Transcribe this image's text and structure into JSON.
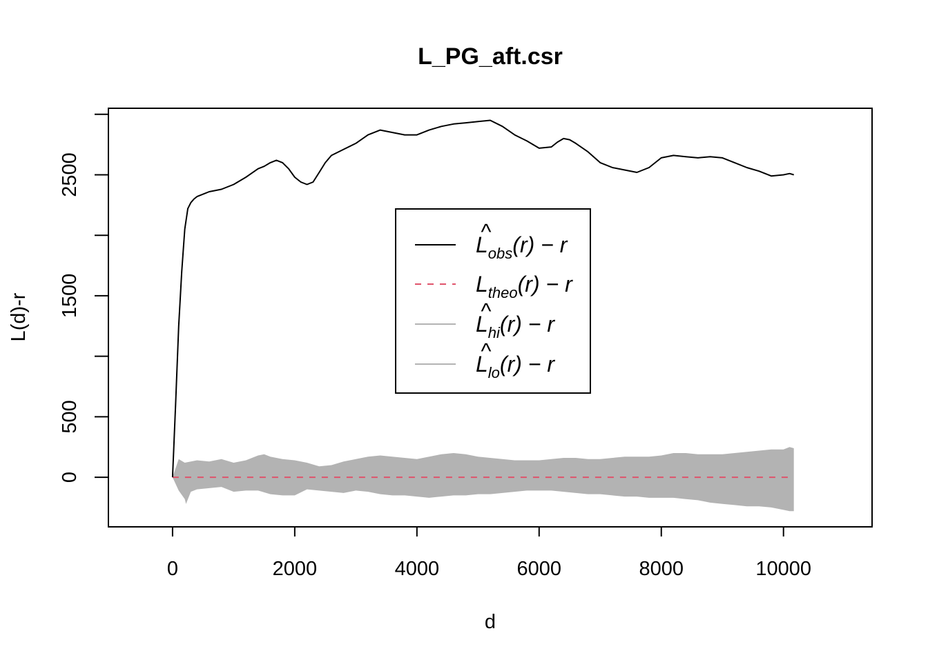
{
  "chart_data": {
    "type": "line",
    "title": "L_PG_aft.csr",
    "xlabel": "d",
    "ylabel": "L(d)-r",
    "xlim": [
      -1050,
      11450
    ],
    "ylim": [
      -410,
      3050
    ],
    "xticks": [
      0,
      2000,
      4000,
      6000,
      8000,
      10000
    ],
    "xtick_labels": [
      "0",
      "2000",
      "4000",
      "6000",
      "8000",
      "10000"
    ],
    "yticks": [
      0,
      500,
      1000,
      1500,
      2000,
      2500,
      3000
    ],
    "ytick_labels": [
      "0",
      "500",
      "",
      "1500",
      "",
      "2500",
      ""
    ],
    "grid": false,
    "legend_position": "center",
    "colors": {
      "obs": "#000000",
      "theo": "#DF536B",
      "envelope": "#B3B3B3"
    },
    "legend": [
      {
        "key": "obs",
        "base": "L",
        "hat": true,
        "sub": "obs",
        "tail": "(r) − r",
        "style": "solid"
      },
      {
        "key": "theo",
        "base": "L",
        "hat": false,
        "sub": "theo",
        "tail": "(r) − r",
        "style": "dashed"
      },
      {
        "key": "hi",
        "base": "L",
        "hat": true,
        "sub": "hi",
        "tail": "(r) − r",
        "style": "solid"
      },
      {
        "key": "lo",
        "base": "L",
        "hat": true,
        "sub": "lo",
        "tail": "(r) − r",
        "style": "solid"
      }
    ],
    "series": [
      {
        "key": "obs",
        "x": [
          0,
          50,
          100,
          150,
          200,
          250,
          300,
          350,
          400,
          500,
          600,
          800,
          1000,
          1200,
          1400,
          1500,
          1600,
          1700,
          1800,
          1900,
          2000,
          2100,
          2200,
          2300,
          2400,
          2500,
          2600,
          2800,
          3000,
          3200,
          3400,
          3600,
          3800,
          4000,
          4200,
          4400,
          4600,
          4800,
          5000,
          5200,
          5400,
          5600,
          5800,
          6000,
          6200,
          6300,
          6400,
          6500,
          6600,
          6800,
          7000,
          7200,
          7400,
          7600,
          7800,
          8000,
          8200,
          8400,
          8600,
          8800,
          9000,
          9200,
          9400,
          9600,
          9800,
          10000,
          10100,
          10170
        ],
        "y": [
          0,
          600,
          1250,
          1700,
          2050,
          2220,
          2270,
          2300,
          2320,
          2340,
          2360,
          2380,
          2420,
          2480,
          2550,
          2570,
          2600,
          2620,
          2600,
          2550,
          2480,
          2440,
          2420,
          2440,
          2520,
          2600,
          2660,
          2710,
          2760,
          2830,
          2870,
          2850,
          2830,
          2830,
          2870,
          2900,
          2920,
          2930,
          2940,
          2950,
          2900,
          2830,
          2780,
          2720,
          2730,
          2770,
          2800,
          2790,
          2760,
          2690,
          2600,
          2560,
          2540,
          2520,
          2560,
          2640,
          2660,
          2650,
          2640,
          2650,
          2640,
          2600,
          2560,
          2530,
          2490,
          2500,
          2510,
          2500
        ]
      },
      {
        "key": "theo",
        "x": [
          0,
          10170
        ],
        "y": [
          0,
          0
        ]
      },
      {
        "key": "hi",
        "x": [
          0,
          100,
          200,
          400,
          600,
          800,
          1000,
          1200,
          1400,
          1500,
          1600,
          1800,
          2000,
          2200,
          2400,
          2600,
          2800,
          3000,
          3200,
          3400,
          3600,
          3800,
          4000,
          4200,
          4400,
          4600,
          4800,
          5000,
          5200,
          5400,
          5600,
          5800,
          6000,
          6200,
          6400,
          6600,
          6800,
          7000,
          7200,
          7400,
          7600,
          7800,
          8000,
          8200,
          8400,
          8600,
          8800,
          9000,
          9200,
          9400,
          9600,
          9800,
          10000,
          10100,
          10170
        ],
        "y": [
          0,
          150,
          120,
          140,
          130,
          150,
          120,
          140,
          180,
          190,
          170,
          150,
          140,
          120,
          90,
          100,
          130,
          150,
          170,
          180,
          170,
          160,
          150,
          170,
          190,
          200,
          190,
          170,
          160,
          150,
          140,
          140,
          140,
          150,
          160,
          160,
          150,
          150,
          160,
          170,
          170,
          170,
          180,
          200,
          200,
          190,
          190,
          190,
          200,
          210,
          220,
          230,
          230,
          250,
          240
        ]
      },
      {
        "key": "lo",
        "x": [
          0,
          100,
          200,
          220,
          300,
          400,
          600,
          800,
          1000,
          1200,
          1400,
          1600,
          1800,
          2000,
          2200,
          2400,
          2600,
          2800,
          3000,
          3200,
          3400,
          3600,
          3800,
          4000,
          4200,
          4400,
          4600,
          4800,
          5000,
          5200,
          5400,
          5600,
          5800,
          6000,
          6200,
          6400,
          6600,
          6800,
          7000,
          7200,
          7400,
          7600,
          7800,
          8000,
          8200,
          8400,
          8600,
          8800,
          9000,
          9200,
          9400,
          9600,
          9800,
          10000,
          10100,
          10170
        ],
        "y": [
          0,
          -110,
          -180,
          -220,
          -120,
          -100,
          -90,
          -80,
          -120,
          -110,
          -110,
          -140,
          -150,
          -150,
          -100,
          -110,
          -120,
          -130,
          -110,
          -120,
          -140,
          -150,
          -150,
          -160,
          -170,
          -160,
          -150,
          -150,
          -140,
          -140,
          -130,
          -120,
          -110,
          -110,
          -110,
          -120,
          -130,
          -140,
          -140,
          -150,
          -160,
          -160,
          -170,
          -170,
          -170,
          -180,
          -190,
          -210,
          -220,
          -230,
          -240,
          -240,
          -250,
          -270,
          -280,
          -280
        ]
      }
    ]
  }
}
